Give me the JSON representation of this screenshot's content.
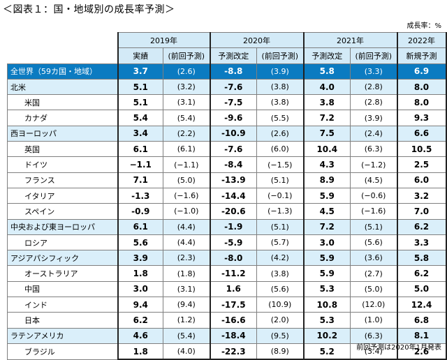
{
  "title": "＜図表１：国・地域別の成長率予測＞",
  "unit": "成長率：%",
  "note": "前回予測は2020年1月発表",
  "years": [
    "2019年",
    "2020年",
    "2021年",
    "2022年"
  ],
  "subheaders": [
    "実績",
    "(前回予測)",
    "予測改定",
    "(前回予測)",
    "予測改定",
    "(前回予測)",
    "新規予測"
  ],
  "rows": [
    {
      "name": "全世界（59カ国・地域）",
      "kind": "world",
      "v": [
        "3.7",
        "(2.6)",
        "-8.8",
        "(3.9)",
        "5.8",
        "(3.3)",
        "6.9"
      ]
    },
    {
      "name": "北米",
      "kind": "region",
      "v": [
        "5.1",
        "(3.2)",
        "-7.6",
        "(3.8)",
        "4.0",
        "(2.8)",
        "8.0"
      ]
    },
    {
      "name": "米国",
      "kind": "country",
      "v": [
        "5.1",
        "(3.1)",
        "-7.5",
        "(3.8)",
        "3.8",
        "(2.8)",
        "8.0"
      ]
    },
    {
      "name": "カナダ",
      "kind": "country",
      "v": [
        "5.4",
        "(5.4)",
        "-9.6",
        "(5.5)",
        "7.2",
        "(3.9)",
        "9.3"
      ]
    },
    {
      "name": "西ヨーロッパ",
      "kind": "region",
      "v": [
        "3.4",
        "(2.2)",
        "-10.9",
        "(2.6)",
        "7.5",
        "(2.4)",
        "6.6"
      ]
    },
    {
      "name": "英国",
      "kind": "country",
      "v": [
        "6.1",
        "(6.1)",
        "-7.6",
        "(6.0)",
        "10.4",
        "(6.3)",
        "10.5"
      ]
    },
    {
      "name": "ドイツ",
      "kind": "country",
      "v": [
        "−1.1",
        "(−1.1)",
        "-8.4",
        "(−1.5)",
        "4.3",
        "(−1.2)",
        "2.5"
      ]
    },
    {
      "name": "フランス",
      "kind": "country",
      "v": [
        "7.1",
        "(5.0)",
        "-13.9",
        "(5.1)",
        "8.9",
        "(4.5)",
        "6.0"
      ]
    },
    {
      "name": "イタリア",
      "kind": "country",
      "v": [
        "-1.3",
        "(−1.6)",
        "-14.4",
        "(−0.1)",
        "5.9",
        "(−0.6)",
        "3.2"
      ]
    },
    {
      "name": "スペイン",
      "kind": "country",
      "v": [
        "-0.9",
        "(−1.0)",
        "-20.6",
        "(−1.3)",
        "4.5",
        "(−1.6)",
        "7.0"
      ]
    },
    {
      "name": "中央および東ヨーロッパ",
      "kind": "region",
      "v": [
        "6.1",
        "(4.4)",
        "-1.9",
        "(5.1)",
        "7.2",
        "(5.1)",
        "6.2"
      ]
    },
    {
      "name": "ロシア",
      "kind": "country",
      "v": [
        "5.6",
        "(4.4)",
        "-5.9",
        "(5.7)",
        "3.0",
        "(5.6)",
        "3.3"
      ]
    },
    {
      "name": "アジアパシフィック",
      "kind": "region",
      "v": [
        "3.9",
        "(2.3)",
        "-8.0",
        "(4.2)",
        "5.9",
        "(3.6)",
        "5.8"
      ]
    },
    {
      "name": "オーストラリア",
      "kind": "country",
      "v": [
        "1.8",
        "(1.8)",
        "-11.2",
        "(3.8)",
        "5.9",
        "(2.7)",
        "6.2"
      ]
    },
    {
      "name": "中国",
      "kind": "country",
      "v": [
        "3.0",
        "(3.1)",
        "1.6",
        "(5.6)",
        "5.3",
        "(5.0)",
        "5.0"
      ]
    },
    {
      "name": "インド",
      "kind": "country",
      "v": [
        "9.4",
        "(9.4)",
        "-17.5",
        "(10.9)",
        "10.8",
        "(12.0)",
        "12.4"
      ]
    },
    {
      "name": "日本",
      "kind": "country",
      "v": [
        "6.2",
        "(1.2)",
        "-16.6",
        "(2.0)",
        "5.3",
        "(1.0)",
        "6.8"
      ]
    },
    {
      "name": "ラテンアメリカ",
      "kind": "region",
      "v": [
        "4.6",
        "(5.4)",
        "-18.4",
        "(9.5)",
        "10.2",
        "(6.3)",
        "8.1"
      ]
    },
    {
      "name": "ブラジル",
      "kind": "country",
      "v": [
        "1.8",
        "(4.0)",
        "-22.3",
        "(8.9)",
        "5.2",
        "(3.4)",
        "2.6"
      ]
    }
  ]
}
